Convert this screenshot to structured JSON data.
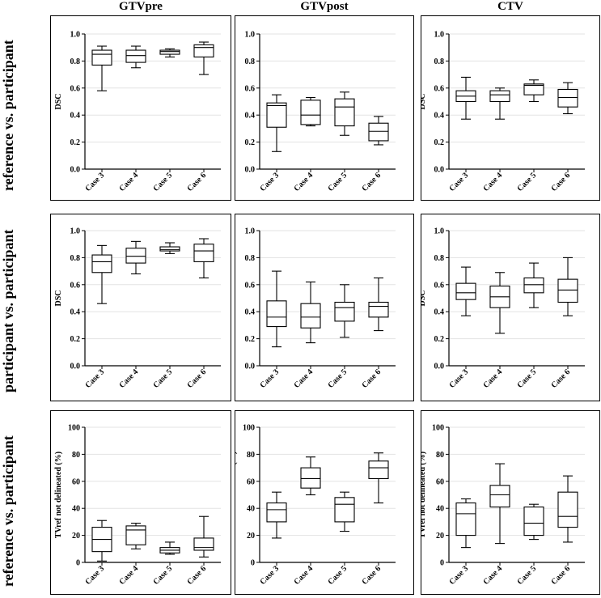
{
  "column_headers": [
    "GTVpre",
    "GTVpost",
    "CTV"
  ],
  "row_labels": [
    "reference  vs. participant",
    "participant  vs. participant",
    "reference  vs. participant"
  ],
  "chart_data": [
    {
      "type": "boxplot",
      "row": 0,
      "col": 0,
      "ylabel": "DSC",
      "ylim": [
        0,
        1
      ],
      "yticks": [
        "0.0",
        "0.2",
        "0.4",
        "0.6",
        "0.8",
        "1.0"
      ],
      "categories": [
        "Case 3",
        "Case 4",
        "Case 5",
        "Case 6"
      ],
      "boxes": [
        {
          "min": 0.58,
          "q1": 0.77,
          "median": 0.85,
          "q3": 0.88,
          "max": 0.91
        },
        {
          "min": 0.75,
          "q1": 0.79,
          "median": 0.84,
          "q3": 0.88,
          "max": 0.91
        },
        {
          "min": 0.83,
          "q1": 0.85,
          "median": 0.87,
          "q3": 0.88,
          "max": 0.89
        },
        {
          "min": 0.7,
          "q1": 0.83,
          "median": 0.9,
          "q3": 0.92,
          "max": 0.94
        }
      ]
    },
    {
      "type": "boxplot",
      "row": 0,
      "col": 1,
      "ylabel": "DSC",
      "ylim": [
        0,
        1
      ],
      "yticks": [
        "0.0",
        "0.2",
        "0.4",
        "0.6",
        "0.8",
        "1.0"
      ],
      "categories": [
        "Case 3",
        "Case 4",
        "Case 5",
        "Case 6"
      ],
      "boxes": [
        {
          "min": 0.13,
          "q1": 0.31,
          "median": 0.47,
          "q3": 0.49,
          "max": 0.55
        },
        {
          "min": 0.32,
          "q1": 0.33,
          "median": 0.4,
          "q3": 0.51,
          "max": 0.53
        },
        {
          "min": 0.25,
          "q1": 0.32,
          "median": 0.46,
          "q3": 0.52,
          "max": 0.57
        },
        {
          "min": 0.18,
          "q1": 0.21,
          "median": 0.28,
          "q3": 0.34,
          "max": 0.39
        }
      ]
    },
    {
      "type": "boxplot",
      "row": 0,
      "col": 2,
      "ylabel": "DSC",
      "ylim": [
        0,
        1
      ],
      "yticks": [
        "0.0",
        "0.2",
        "0.4",
        "0.6",
        "0.8",
        "1.0"
      ],
      "categories": [
        "Case 3",
        "Case 4",
        "Case 5",
        "Case 6"
      ],
      "boxes": [
        {
          "min": 0.37,
          "q1": 0.5,
          "median": 0.54,
          "q3": 0.58,
          "max": 0.68
        },
        {
          "min": 0.37,
          "q1": 0.5,
          "median": 0.55,
          "q3": 0.58,
          "max": 0.6
        },
        {
          "min": 0.5,
          "q1": 0.55,
          "median": 0.62,
          "q3": 0.63,
          "max": 0.66
        },
        {
          "min": 0.41,
          "q1": 0.46,
          "median": 0.53,
          "q3": 0.59,
          "max": 0.64
        }
      ]
    },
    {
      "type": "boxplot",
      "row": 1,
      "col": 0,
      "ylabel": "DSC",
      "ylim": [
        0,
        1
      ],
      "yticks": [
        "0.0",
        "0.2",
        "0.4",
        "0.6",
        "0.8",
        "1.0"
      ],
      "categories": [
        "Case 3",
        "Case 4",
        "Case 5",
        "Case 6"
      ],
      "boxes": [
        {
          "min": 0.46,
          "q1": 0.69,
          "median": 0.77,
          "q3": 0.82,
          "max": 0.89
        },
        {
          "min": 0.68,
          "q1": 0.76,
          "median": 0.81,
          "q3": 0.87,
          "max": 0.92
        },
        {
          "min": 0.83,
          "q1": 0.85,
          "median": 0.86,
          "q3": 0.88,
          "max": 0.91
        },
        {
          "min": 0.65,
          "q1": 0.77,
          "median": 0.85,
          "q3": 0.9,
          "max": 0.94
        }
      ]
    },
    {
      "type": "boxplot",
      "row": 1,
      "col": 1,
      "ylabel": "DSC",
      "ylim": [
        0,
        1
      ],
      "yticks": [
        "0.0",
        "0.2",
        "0.4",
        "0.6",
        "0.8",
        "1.0"
      ],
      "categories": [
        "Case 3",
        "Case 4",
        "Case 5",
        "Case 6"
      ],
      "boxes": [
        {
          "min": 0.14,
          "q1": 0.29,
          "median": 0.36,
          "q3": 0.48,
          "max": 0.7
        },
        {
          "min": 0.17,
          "q1": 0.28,
          "median": 0.36,
          "q3": 0.46,
          "max": 0.62
        },
        {
          "min": 0.21,
          "q1": 0.33,
          "median": 0.43,
          "q3": 0.47,
          "max": 0.6
        },
        {
          "min": 0.26,
          "q1": 0.36,
          "median": 0.44,
          "q3": 0.47,
          "max": 0.65
        }
      ]
    },
    {
      "type": "boxplot",
      "row": 1,
      "col": 2,
      "ylabel": "DSC",
      "ylim": [
        0,
        1
      ],
      "yticks": [
        "0.0",
        "0.2",
        "0.4",
        "0.6",
        "0.8",
        "1.0"
      ],
      "categories": [
        "Case 3",
        "Case 4",
        "Case 5",
        "Case 6"
      ],
      "boxes": [
        {
          "min": 0.37,
          "q1": 0.49,
          "median": 0.54,
          "q3": 0.61,
          "max": 0.73
        },
        {
          "min": 0.24,
          "q1": 0.43,
          "median": 0.51,
          "q3": 0.59,
          "max": 0.69
        },
        {
          "min": 0.43,
          "q1": 0.54,
          "median": 0.6,
          "q3": 0.65,
          "max": 0.76
        },
        {
          "min": 0.37,
          "q1": 0.47,
          "median": 0.56,
          "q3": 0.64,
          "max": 0.8
        }
      ]
    },
    {
      "type": "boxplot",
      "row": 2,
      "col": 0,
      "ylabel": "TVref not delineated (%)",
      "ylim": [
        0,
        100
      ],
      "yticks": [
        "0",
        "20",
        "40",
        "60",
        "80",
        "100"
      ],
      "categories": [
        "Case 3",
        "Case 4",
        "Case 5",
        "Case 6"
      ],
      "boxes": [
        {
          "min": 1,
          "q1": 8,
          "median": 17,
          "q3": 26,
          "max": 31
        },
        {
          "min": 10,
          "q1": 13,
          "median": 24,
          "q3": 27,
          "max": 29
        },
        {
          "min": 6,
          "q1": 7,
          "median": 9,
          "q3": 11,
          "max": 15
        },
        {
          "min": 4,
          "q1": 9,
          "median": 11,
          "q3": 18,
          "max": 34
        }
      ]
    },
    {
      "type": "boxplot",
      "row": 2,
      "col": 1,
      "ylabel": "TVref not delineated (%)",
      "ylim": [
        0,
        100
      ],
      "yticks": [
        "0",
        "20",
        "40",
        "60",
        "80",
        "100"
      ],
      "categories": [
        "Case 3",
        "Case 4",
        "Case 5",
        "Case 6"
      ],
      "boxes": [
        {
          "min": 18,
          "q1": 30,
          "median": 39,
          "q3": 44,
          "max": 52
        },
        {
          "min": 50,
          "q1": 55,
          "median": 62,
          "q3": 70,
          "max": 78
        },
        {
          "min": 23,
          "q1": 30,
          "median": 43,
          "q3": 48,
          "max": 52
        },
        {
          "min": 44,
          "q1": 62,
          "median": 70,
          "q3": 75,
          "max": 81
        }
      ]
    },
    {
      "type": "boxplot",
      "row": 2,
      "col": 2,
      "ylabel": "TVref not delineated (%)",
      "ylim": [
        0,
        100
      ],
      "yticks": [
        "0",
        "20",
        "40",
        "60",
        "80",
        "100"
      ],
      "categories": [
        "Case 3",
        "Case 4",
        "Case 5",
        "Case 6"
      ],
      "boxes": [
        {
          "min": 11,
          "q1": 20,
          "median": 36,
          "q3": 44,
          "max": 47
        },
        {
          "min": 14,
          "q1": 41,
          "median": 50,
          "q3": 57,
          "max": 73
        },
        {
          "min": 17,
          "q1": 20,
          "median": 29,
          "q3": 41,
          "max": 43
        },
        {
          "min": 15,
          "q1": 26,
          "median": 34,
          "q3": 52,
          "max": 64
        }
      ]
    }
  ]
}
